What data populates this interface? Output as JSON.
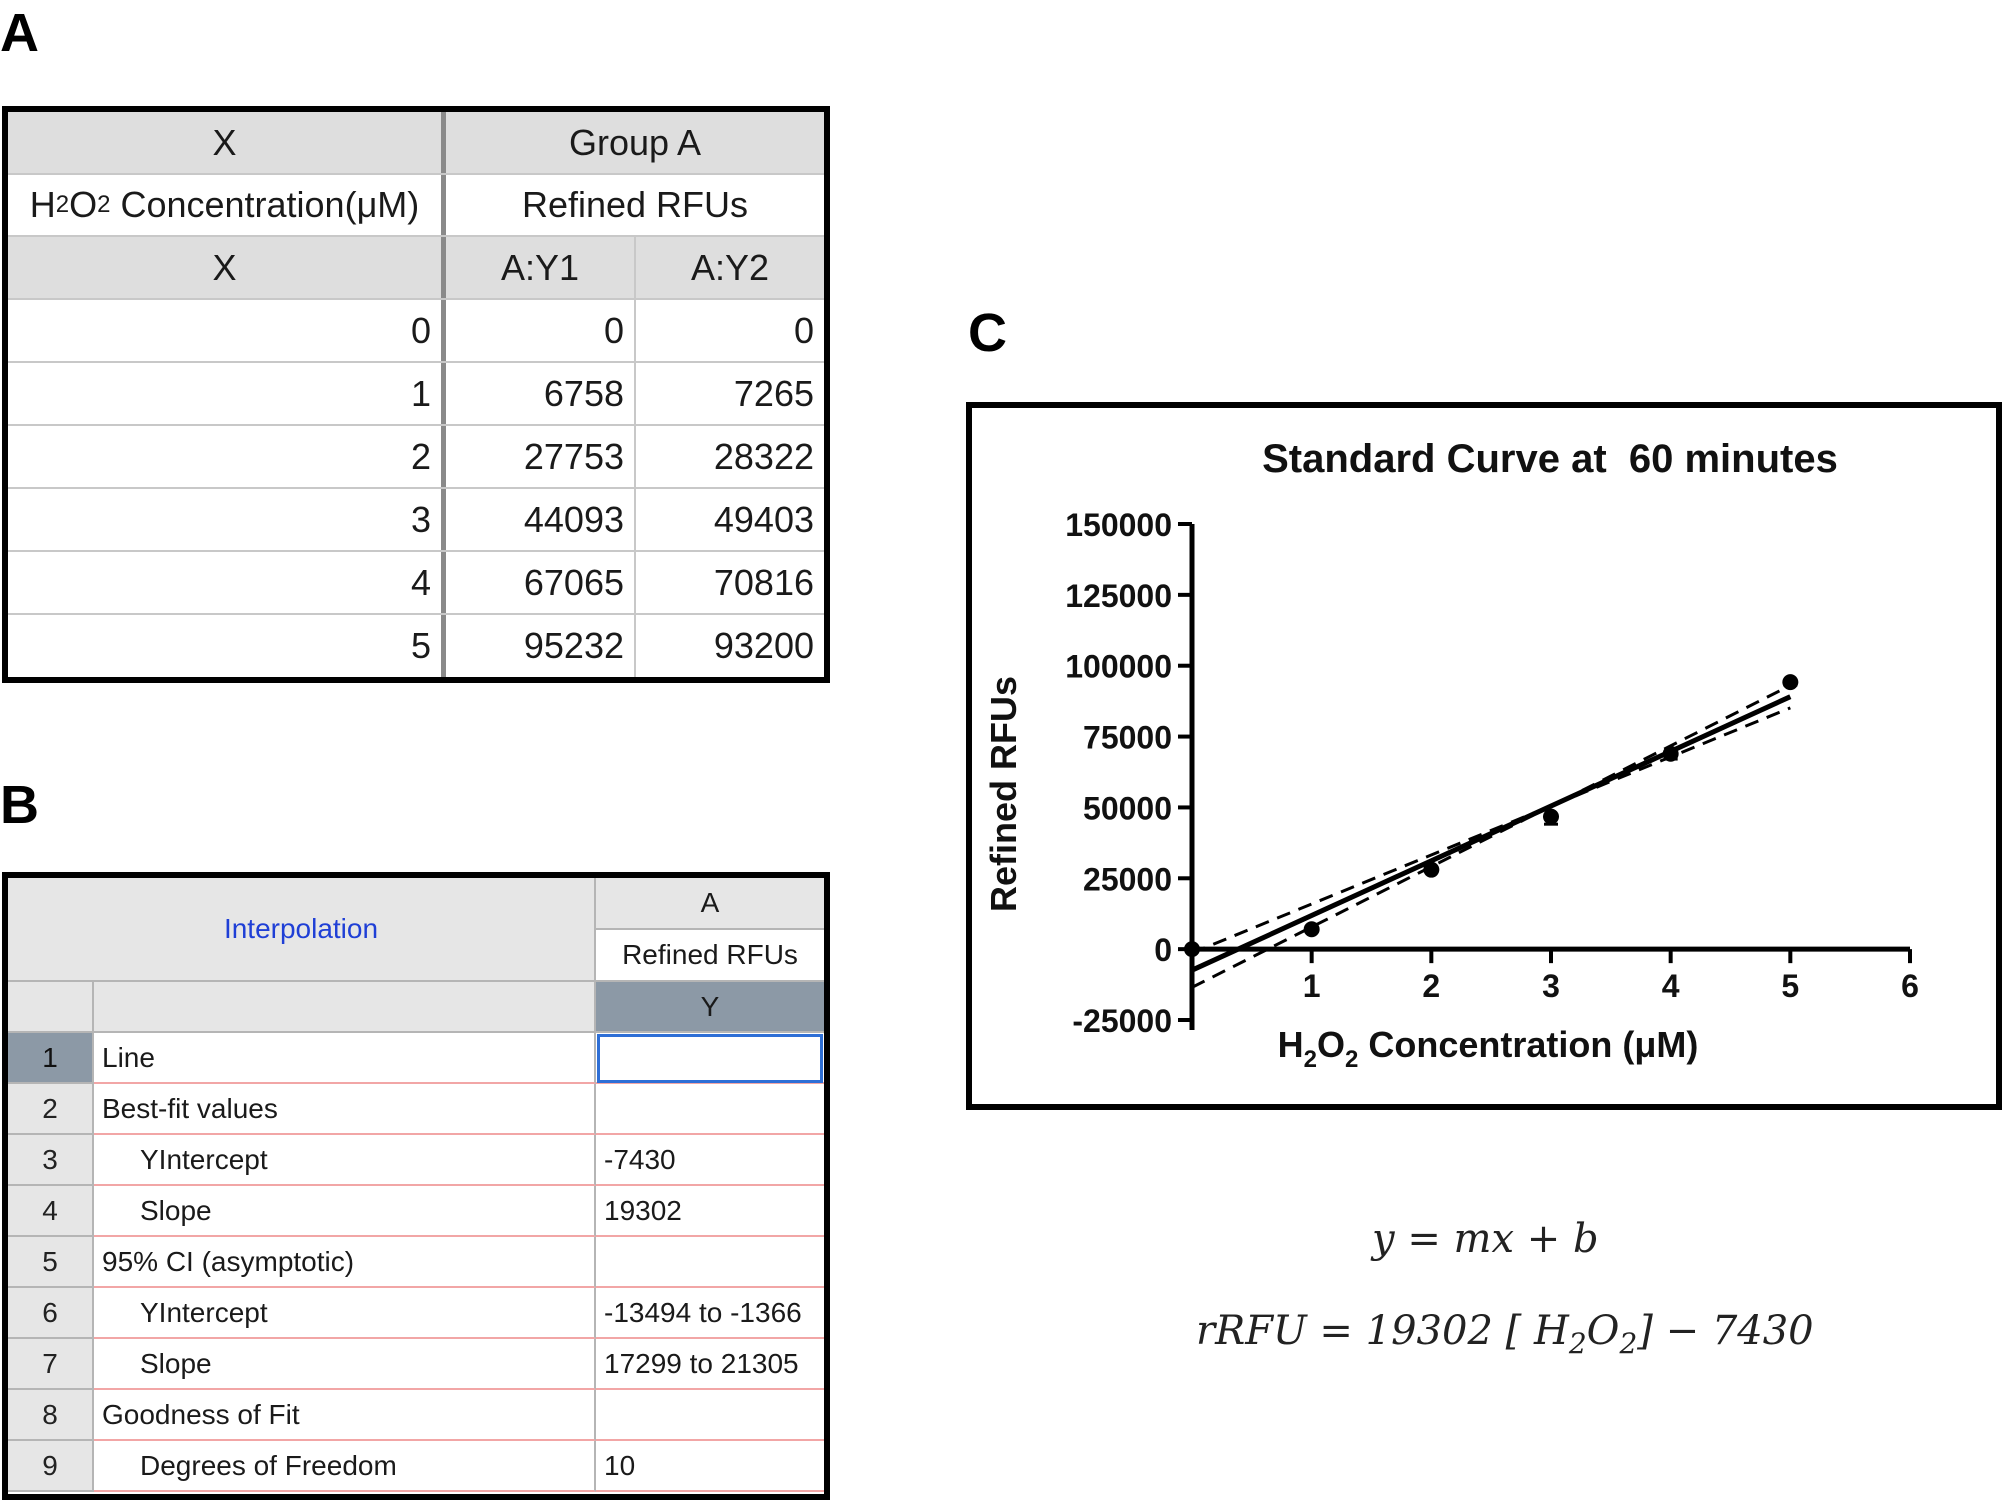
{
  "panels": {
    "a": "A",
    "b": "B",
    "c": "C"
  },
  "table_a": {
    "header_x": "X",
    "header_group": "Group A",
    "concentration_label": {
      "base1": "H",
      "sub1": "2",
      "base2": "O",
      "sub2": "2",
      "rest": " Concentration(μM)"
    },
    "group_subtitle": "Refined RFUs",
    "col_x": "X",
    "col_y1": "A:Y1",
    "col_y2": "A:Y2",
    "rows": [
      {
        "x": "0",
        "y1": "0",
        "y2": "0"
      },
      {
        "x": "1",
        "y1": "6758",
        "y2": "7265"
      },
      {
        "x": "2",
        "y1": "27753",
        "y2": "28322"
      },
      {
        "x": "3",
        "y1": "44093",
        "y2": "49403"
      },
      {
        "x": "4",
        "y1": "67065",
        "y2": "70816"
      },
      {
        "x": "5",
        "y1": "95232",
        "y2": "93200"
      }
    ]
  },
  "table_b": {
    "title": "Interpolation",
    "col_letter": "A",
    "col_subtitle": "Refined RFUs",
    "col_y": "Y",
    "rows": [
      {
        "n": "1",
        "label": "Line",
        "value": ""
      },
      {
        "n": "2",
        "label": "Best-fit values",
        "value": ""
      },
      {
        "n": "3",
        "label": "YIntercept",
        "value": "-7430"
      },
      {
        "n": "4",
        "label": "Slope",
        "value": "19302"
      },
      {
        "n": "5",
        "label": "95% CI (asymptotic)",
        "value": ""
      },
      {
        "n": "6",
        "label": "YIntercept",
        "value": "-13494 to -1366"
      },
      {
        "n": "7",
        "label": "Slope",
        "value": "17299 to 21305"
      },
      {
        "n": "8",
        "label": "Goodness of Fit",
        "value": ""
      },
      {
        "n": "9",
        "label": "Degrees of Freedom",
        "value": "10"
      }
    ],
    "colors": {
      "title": "#1f3fd6",
      "grid_line": "#f2a6a6",
      "selected_row": "#8c99a6",
      "active_cell": "#2e6fd6"
    }
  },
  "chart_data": {
    "type": "scatter",
    "title": "Standard Curve at  60 minutes",
    "xlabel": {
      "base1": "H",
      "sub1": "2",
      "base2": "O",
      "sub2": "2",
      "rest": " Concentration (μM)"
    },
    "ylabel": "Refined RFUs",
    "xlim": [
      0,
      6
    ],
    "ylim": [
      -25000,
      150000
    ],
    "x_ticks": [
      "1",
      "2",
      "3",
      "4",
      "5",
      "6"
    ],
    "y_ticks": [
      "-25000",
      "0",
      "25000",
      "50000",
      "75000",
      "100000",
      "125000",
      "150000"
    ],
    "x_tick_values": [
      1,
      2,
      3,
      4,
      5,
      6
    ],
    "y_tick_values": [
      -25000,
      0,
      25000,
      50000,
      75000,
      100000,
      125000,
      150000
    ],
    "points": [
      {
        "x": 0,
        "y": 0,
        "err": 0
      },
      {
        "x": 1,
        "y": 7012,
        "err": 254
      },
      {
        "x": 2,
        "y": 28038,
        "err": 285
      },
      {
        "x": 3,
        "y": 46748,
        "err": 2655
      },
      {
        "x": 4,
        "y": 68941,
        "err": 1876
      },
      {
        "x": 5,
        "y": 94216,
        "err": 1016
      }
    ],
    "fit": {
      "slope": 19302,
      "intercept": -7430,
      "x_range": [
        0,
        5
      ]
    },
    "ci_band": {
      "intercept_low": -13494,
      "intercept_high": -1366,
      "slope_low": 17299,
      "slope_high": 21305
    },
    "grid": false,
    "legend": "none",
    "colors": {
      "line": "#000000",
      "points": "#000000"
    }
  },
  "equations": {
    "general": "y = mx + b",
    "specific_prefix": "rRFU = 19302 [",
    "specific_h": "H",
    "specific_sub1": "2",
    "specific_o": "O",
    "specific_sub2": "2",
    "specific_suffix": "] − 7430"
  }
}
